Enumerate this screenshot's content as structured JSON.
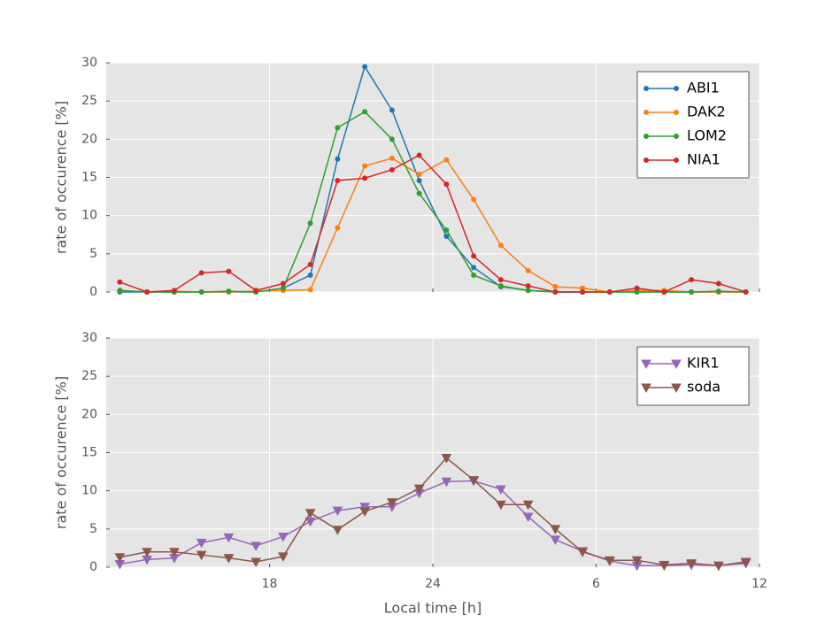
{
  "chart_data": [
    {
      "type": "line",
      "ylabel": "rate of occurence [%]",
      "marker": "circle",
      "grid": true,
      "legend": "upper right",
      "xlim": [
        12,
        36
      ],
      "ylim": [
        0,
        30
      ],
      "xticks": [
        18,
        24,
        30,
        36
      ],
      "yticks": [
        0,
        5,
        10,
        15,
        20,
        25,
        30
      ],
      "x": [
        12.5,
        13.5,
        14.5,
        15.5,
        16.5,
        17.5,
        18.5,
        19.5,
        20.5,
        21.5,
        22.5,
        23.5,
        24.5,
        25.5,
        26.5,
        27.5,
        28.5,
        29.5,
        30.5,
        31.5,
        32.5,
        33.5,
        34.5,
        35.5
      ],
      "series": [
        {
          "name": "ABI1",
          "color": "#1f77b4",
          "values": [
            0,
            0,
            0,
            0,
            0,
            0,
            0.5,
            2.2,
            17.4,
            29.5,
            23.8,
            14.6,
            7.3,
            3.2,
            0.7,
            0.2,
            0,
            0,
            0,
            0,
            0,
            0,
            0,
            0
          ]
        },
        {
          "name": "DAK2",
          "color": "#ff7f0e",
          "values": [
            0.2,
            0,
            0.1,
            0,
            0,
            0.1,
            0.2,
            0.3,
            8.4,
            16.5,
            17.5,
            15.4,
            17.3,
            12.1,
            6.1,
            2.8,
            0.7,
            0.5,
            0,
            0.2,
            0.2,
            0,
            0,
            0
          ]
        },
        {
          "name": "LOM2",
          "color": "#2ca02c",
          "values": [
            0.2,
            0,
            0,
            0,
            0.1,
            0,
            0.5,
            9.0,
            21.5,
            23.6,
            20.0,
            12.9,
            8.1,
            2.2,
            0.8,
            0.2,
            0,
            0,
            0,
            0,
            0,
            0,
            0.1,
            0
          ]
        },
        {
          "name": "NIA1",
          "color": "#d62728",
          "values": [
            1.3,
            0,
            0.2,
            2.5,
            2.7,
            0.2,
            1.1,
            3.6,
            14.6,
            14.9,
            16.0,
            17.9,
            14.1,
            4.7,
            1.6,
            0.8,
            0,
            0,
            0,
            0.5,
            0,
            1.6,
            1.1,
            0
          ]
        }
      ]
    },
    {
      "type": "line",
      "ylabel": "rate of occurence [%]",
      "xlabel": "Local time [h]",
      "marker": "triangle-down",
      "grid": true,
      "legend": "upper right",
      "xlim": [
        12,
        36
      ],
      "ylim": [
        0,
        30
      ],
      "xticks": [
        18,
        24,
        {
          "value": 30,
          "label": "6"
        },
        {
          "value": 36,
          "label": "12"
        }
      ],
      "yticks": [
        0,
        5,
        10,
        15,
        20,
        25,
        30
      ],
      "x": [
        12.5,
        13.5,
        14.5,
        15.5,
        16.5,
        17.5,
        18.5,
        19.5,
        20.5,
        21.5,
        22.5,
        23.5,
        24.5,
        25.5,
        26.5,
        27.5,
        28.5,
        29.5,
        30.5,
        31.5,
        32.5,
        33.5,
        34.5,
        35.5
      ],
      "series": [
        {
          "name": "KIR1",
          "color": "#9467bd",
          "values": [
            0.4,
            1.0,
            1.2,
            3.2,
            3.9,
            2.8,
            4.0,
            6.0,
            7.4,
            7.9,
            7.9,
            9.7,
            11.2,
            11.3,
            10.2,
            6.6,
            3.6,
            2.1,
            0.8,
            0.2,
            0.2,
            0.3,
            0.2,
            0.5
          ]
        },
        {
          "name": "soda",
          "color": "#8c564b",
          "values": [
            1.3,
            2.0,
            2.0,
            1.6,
            1.2,
            0.7,
            1.4,
            7.1,
            4.9,
            7.3,
            8.5,
            10.3,
            14.3,
            11.4,
            8.2,
            8.2,
            5.0,
            2.0,
            0.9,
            0.9,
            0.3,
            0.5,
            0.2,
            0.7
          ]
        }
      ]
    }
  ]
}
